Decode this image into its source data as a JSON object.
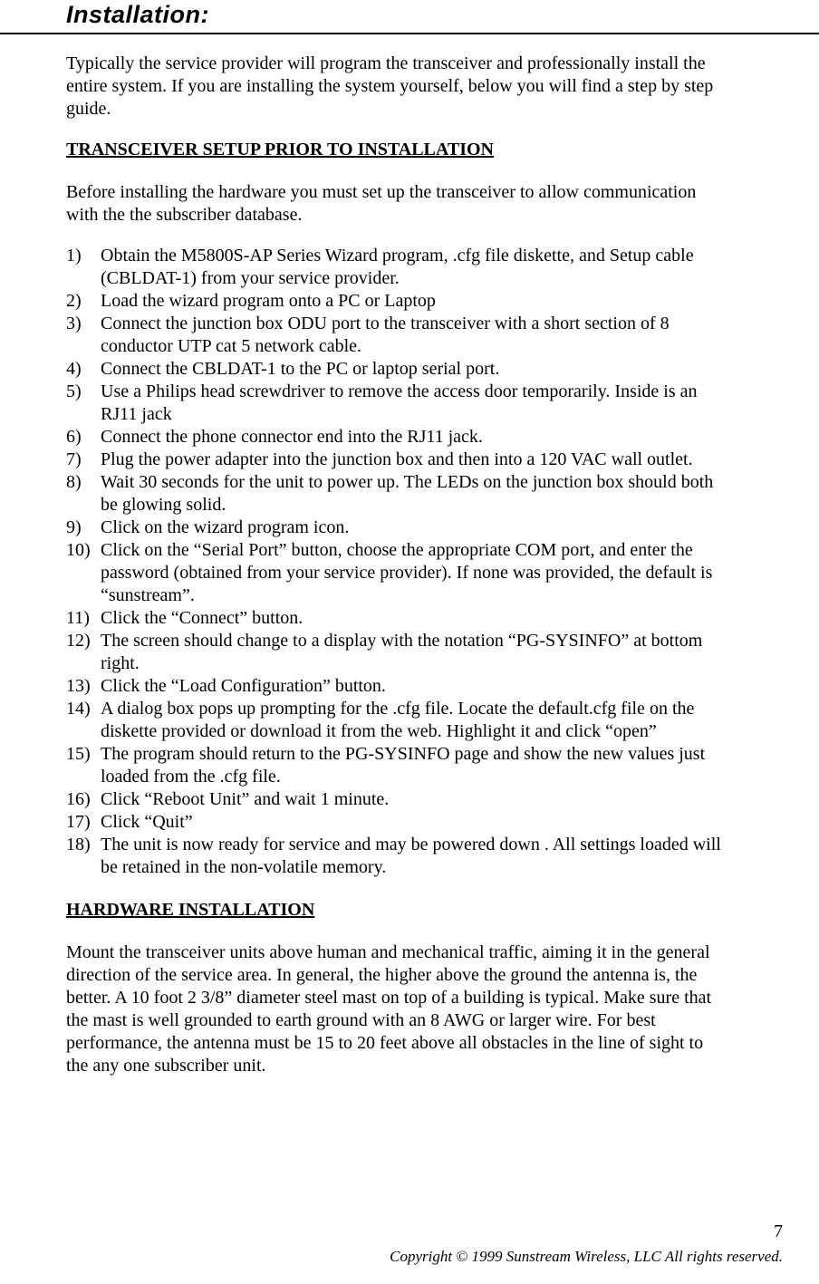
{
  "header": {
    "title": "Installation:"
  },
  "content": {
    "intro": "Typically the service provider will program the transceiver and professionally install the entire system.  If you are installing the system yourself, below you will find a step by step guide.",
    "section1": {
      "heading": "TRANSCEIVER SETUP PRIOR TO INSTALLATION",
      "intro": "Before installing the hardware you must set up the transceiver to allow communication with the the subscriber database.",
      "steps": [
        "Obtain the M5800S-AP Series Wizard program, .cfg file diskette, and Setup cable (CBLDAT-1) from your service provider.",
        "Load the wizard program onto a PC or Laptop",
        "Connect the junction box ODU port to the transceiver with a short section of 8 conductor UTP cat 5 network cable.",
        "Connect the CBLDAT-1 to the PC or laptop serial port.",
        "Use a Philips head screwdriver to remove the access door temporarily. Inside is an RJ11 jack",
        "Connect the phone connector end into the RJ11 jack.",
        "Plug the power adapter into the junction box and then into a 120 VAC wall outlet.",
        "Wait 30 seconds for the unit to power up.  The LEDs on the junction box should both be glowing solid.",
        "Click on the wizard program icon.",
        "Click on the “Serial Port” button, choose the appropriate COM port, and enter the password (obtained from your service provider).  If none was provided, the default is “sunstream”.",
        "Click the “Connect” button.",
        "The screen should change to a display with the notation “PG-SYSINFO” at bottom right.",
        "Click the “Load Configuration” button.",
        "A dialog box pops up prompting for the .cfg file. Locate the default.cfg file on the diskette provided or download it from the web. Highlight it and click “open”",
        "The program should return to the PG-SYSINFO page and show the new values just loaded from the .cfg file.",
        "Click “Reboot Unit” and wait 1 minute.",
        "Click “Quit”",
        "The unit is now ready for service and may be powered down .  All settings loaded will be retained in the non-volatile memory."
      ]
    },
    "section2": {
      "heading": "HARDWARE INSTALLATION",
      "body": "Mount the transceiver units above human and mechanical traffic, aiming it in the general direction of the service area. In general, the higher above the ground the antenna is, the better.  A 10 foot 2 3/8” diameter steel mast on top of a building is typical.  Make sure that the mast is well grounded to earth ground with an 8 AWG or larger wire.  For best performance, the antenna must be 15 to 20 feet above all obstacles in the line of sight to the any one subscriber unit."
    }
  },
  "footer": {
    "page": "7",
    "copyright": "Copyright © 1999 Sunstream Wireless, LLC  All rights reserved."
  }
}
